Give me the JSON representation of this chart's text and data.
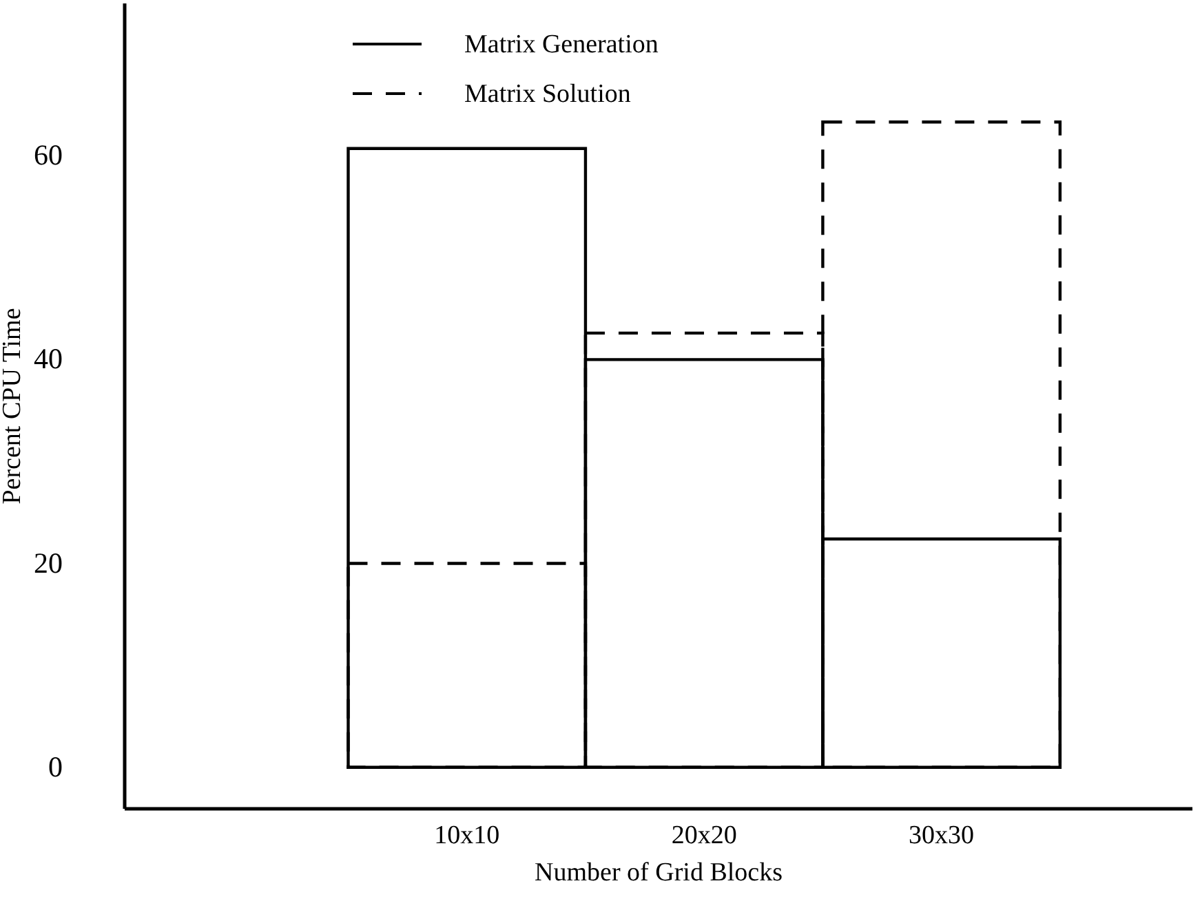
{
  "chart_data": {
    "type": "bar",
    "xlabel": "Number of Grid Blocks",
    "ylabel": "Percent CPU Time",
    "categories": [
      "10x10",
      "20x20",
      "30x30"
    ],
    "series": [
      {
        "name": "Matrix Generation",
        "color": "#000000",
        "line_style": "solid",
        "values": [
          60.7,
          40,
          22.4
        ]
      },
      {
        "name": "Matrix Solution",
        "color": "#000000",
        "line_style": "dashed",
        "values": [
          20,
          42.6,
          63.3
        ]
      }
    ],
    "ylim": [
      -4,
      75
    ],
    "yticks": [
      0,
      20,
      40,
      60
    ],
    "grid": false,
    "legend": "top"
  }
}
